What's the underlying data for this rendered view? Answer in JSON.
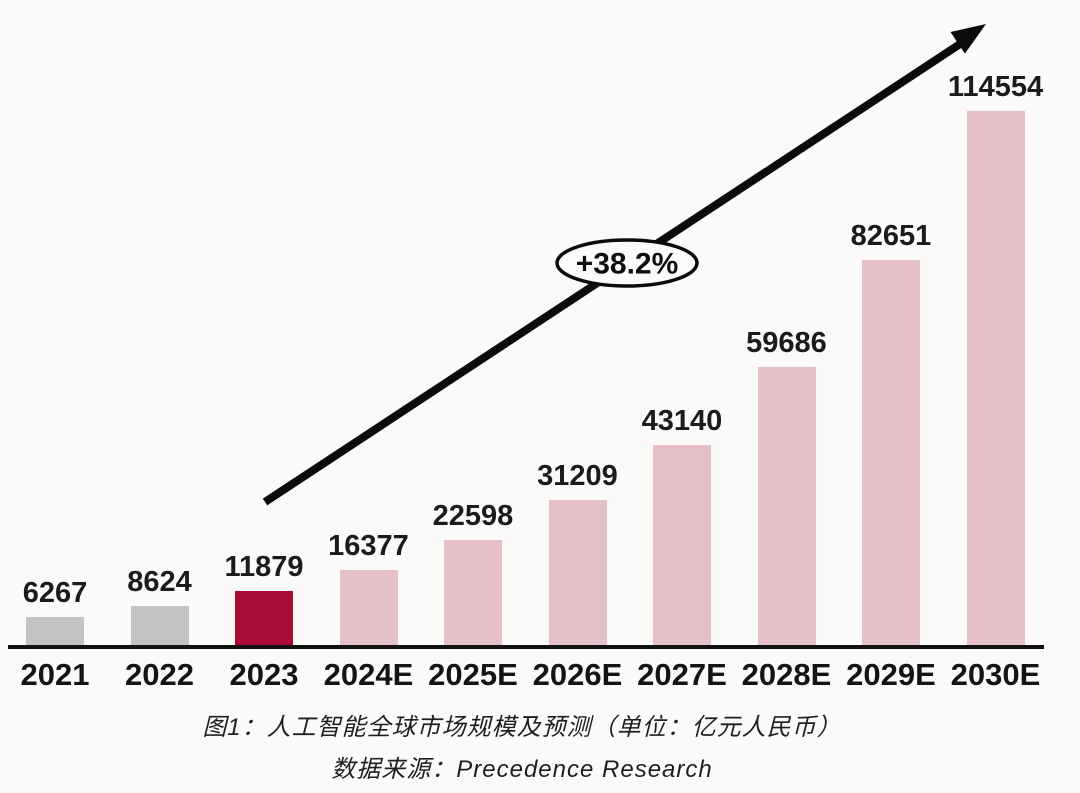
{
  "chart_data": {
    "type": "bar",
    "categories": [
      "2021",
      "2022",
      "2023",
      "2024E",
      "2025E",
      "2026E",
      "2027E",
      "2028E",
      "2029E",
      "2030E"
    ],
    "values": [
      6267,
      8624,
      11879,
      16377,
      22598,
      31209,
      43140,
      59686,
      82651,
      114554
    ],
    "bar_colors": [
      "#c5c3c1",
      "#c5c3c1",
      "#a80b36",
      "#e4c0c9",
      "#e4c0c9",
      "#e4c0c9",
      "#e4c0c9",
      "#e4c0c9",
      "#e4c0c9",
      "#e4c0c9"
    ],
    "title": "图1：人工智能全球市场规模及预测（单位：亿元人民币）",
    "source": "数据来源：Precedence Research",
    "annotation": {
      "growth_label": "+38.2%"
    },
    "xlabel": "",
    "ylabel": "",
    "ylim": [
      0,
      120000
    ],
    "grid": false,
    "legend": false,
    "colors": {
      "bar_past": "#c5c3c1",
      "bar_current": "#a80b36",
      "bar_forecast": "#e4c0c9",
      "axis": "#121212",
      "arrow": "#0b0b0b",
      "value_text": "#1b1b1b",
      "background": "#fbfaf8"
    }
  }
}
